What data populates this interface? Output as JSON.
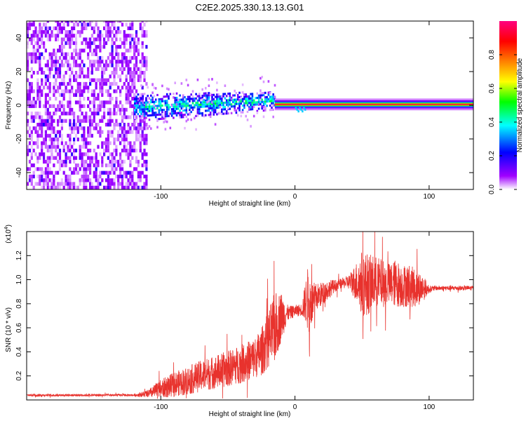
{
  "figure": {
    "title": "C2E2.2025.330.13.13.G01"
  },
  "chart_data": [
    {
      "type": "heatmap",
      "title": "C2E2.2025.330.13.13.G01",
      "xlabel": "Height of straight line (km)",
      "ylabel": "Frequency (Hz)",
      "xlim": [
        -200,
        133
      ],
      "ylim": [
        -50,
        50
      ],
      "xticks": [
        -100,
        0,
        100
      ],
      "xtick_labels": [
        "-100",
        "0",
        "100"
      ],
      "yticks": [
        -40,
        -20,
        0,
        20,
        40
      ],
      "ytick_labels": [
        "-40",
        "-20",
        "0",
        "20",
        "40"
      ],
      "grid": false,
      "colorbar": {
        "label": "Normalized spectral amplitude",
        "range": [
          0,
          1
        ],
        "ticks": [
          0.0,
          0.2,
          0.4,
          0.6,
          0.8
        ],
        "tick_labels": [
          "0.0",
          "0.2",
          "0.4",
          "0.6",
          "0.8"
        ],
        "colormap": [
          "#ffffff",
          "#a000ff",
          "#0000ff",
          "#00ffff",
          "#00ff00",
          "#ffff00",
          "#ff8000",
          "#ff0000",
          "#ff0080"
        ]
      },
      "regions": [
        {
          "name": "broadband noise",
          "x_range": [
            -200,
            -110
          ],
          "freq_range": [
            -50,
            50
          ],
          "amplitude": 0.05
        },
        {
          "name": "noisy band",
          "x_range": [
            -120,
            -15
          ],
          "freq_range": [
            -8,
            8
          ],
          "amplitude": 0.35
        },
        {
          "name": "carrier line",
          "x_range": [
            -15,
            133
          ],
          "freq_center": 0.5,
          "amplitude": 0.95
        }
      ]
    },
    {
      "type": "line",
      "xlabel": "Height of straight line (km)",
      "ylabel": "SNR (10 * v/v)",
      "y_multiplier": "(x10",
      "y_multiplier_exp": "4",
      "y_multiplier_close": ")",
      "xlim": [
        -200,
        133
      ],
      "ylim": [
        0,
        1.4
      ],
      "xticks": [
        -100,
        0,
        100
      ],
      "xtick_labels": [
        "-100",
        "0",
        "100"
      ],
      "yticks": [
        0.2,
        0.4,
        0.6,
        0.8,
        1.0,
        1.2
      ],
      "ytick_labels": [
        "0.2",
        "0.4",
        "0.6",
        "0.8",
        "1.0",
        "1.2"
      ],
      "grid": false,
      "series": [
        {
          "name": "SNR",
          "color": "#e8322d",
          "x": [
            -200,
            -180,
            -160,
            -140,
            -120,
            -110,
            -100,
            -90,
            -80,
            -70,
            -60,
            -50,
            -40,
            -30,
            -25,
            -20,
            -15,
            -10,
            -5,
            0,
            5,
            8,
            10,
            12,
            15,
            20,
            25,
            30,
            35,
            40,
            45,
            50,
            55,
            60,
            65,
            70,
            75,
            80,
            85,
            90,
            95,
            100,
            105,
            110,
            115,
            120,
            125,
            133
          ],
          "y": [
            0.04,
            0.04,
            0.04,
            0.04,
            0.04,
            0.05,
            0.09,
            0.13,
            0.16,
            0.2,
            0.23,
            0.26,
            0.3,
            0.35,
            0.4,
            0.5,
            0.6,
            0.7,
            0.72,
            0.74,
            0.75,
            0.82,
            0.84,
            0.8,
            0.85,
            0.88,
            0.92,
            0.95,
            0.97,
            0.98,
            0.98,
            0.97,
            0.96,
            0.98,
            0.97,
            0.96,
            0.97,
            0.95,
            0.95,
            0.93,
            0.93,
            0.92,
            0.93,
            0.93,
            0.93,
            0.93,
            0.93,
            0.93
          ],
          "noise_amplitude": [
            0.01,
            0.01,
            0.01,
            0.01,
            0.01,
            0.03,
            0.08,
            0.1,
            0.12,
            0.13,
            0.14,
            0.15,
            0.16,
            0.17,
            0.2,
            0.24,
            0.3,
            0.2,
            0.06,
            0.05,
            0.05,
            0.18,
            0.3,
            0.2,
            0.12,
            0.1,
            0.08,
            0.05,
            0.04,
            0.06,
            0.15,
            0.28,
            0.25,
            0.22,
            0.2,
            0.18,
            0.2,
            0.18,
            0.18,
            0.16,
            0.12,
            0.03,
            0.02,
            0.02,
            0.02,
            0.02,
            0.02,
            0.02
          ]
        }
      ]
    }
  ]
}
